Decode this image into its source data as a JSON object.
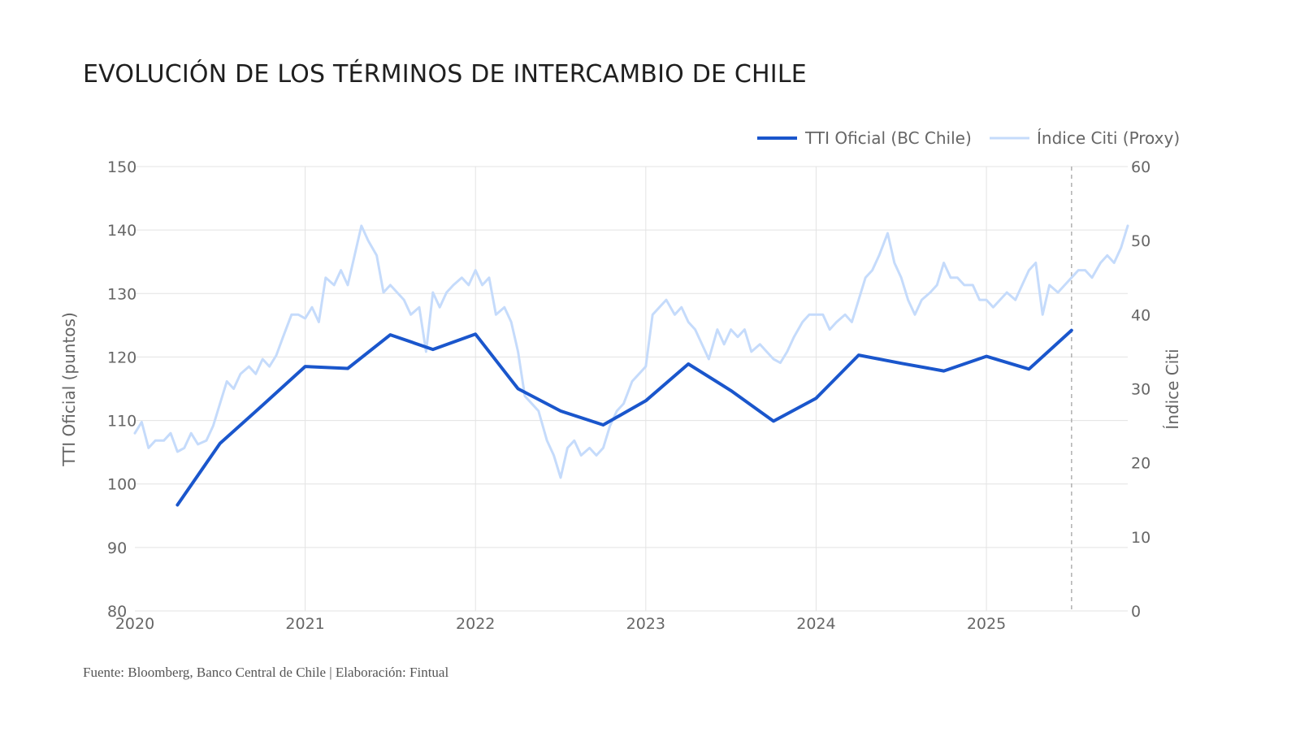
{
  "title": "EVOLUCIÓN DE LOS TÉRMINOS DE INTERCAMBIO DE CHILE",
  "footer": "Fuente: Bloomberg, Banco Central de Chile | Elaboración: Fintual",
  "chart_data": {
    "type": "line",
    "x_ticks": [
      "2020",
      "2021",
      "2022",
      "2023",
      "2024",
      "2025"
    ],
    "x_range": [
      2020.0,
      2025.83
    ],
    "y_left": {
      "label": "TTI Oficial (puntos)",
      "range": [
        80,
        150
      ],
      "ticks": [
        "80",
        "90",
        "100",
        "110",
        "120",
        "130",
        "140",
        "150"
      ]
    },
    "y_right": {
      "label": "Índice Citi",
      "range": [
        0,
        60
      ],
      "ticks": [
        "0",
        "10",
        "20",
        "30",
        "40",
        "50",
        "60"
      ]
    },
    "vline_x": 2025.5,
    "grid": true,
    "legend_position": "top-right",
    "colors": {
      "official": "#1a56cc",
      "citi": "#c5dbfb",
      "grid": "#e3e3e3",
      "vline": "#b0b0b0",
      "text": "#666666"
    },
    "series": [
      {
        "name": "TTI Oficial (BC Chile)",
        "axis": "left",
        "x": [
          2020.25,
          2020.5,
          2020.75,
          2021.0,
          2021.25,
          2021.5,
          2021.75,
          2022.0,
          2022.25,
          2022.5,
          2022.75,
          2023.0,
          2023.25,
          2023.5,
          2023.75,
          2024.0,
          2024.25,
          2024.5,
          2024.75,
          2025.0,
          2025.25,
          2025.5
        ],
        "values": [
          96.7,
          106.4,
          112.4,
          118.5,
          118.2,
          123.5,
          121.2,
          123.6,
          115.0,
          111.5,
          109.3,
          113.1,
          118.9,
          114.7,
          109.9,
          113.5,
          120.3,
          119.0,
          117.8,
          120.1,
          118.1,
          124.2
        ]
      },
      {
        "name": "Índice Citi (Proxy)",
        "axis": "right",
        "x": [
          2020.0,
          2020.04,
          2020.08,
          2020.12,
          2020.17,
          2020.21,
          2020.25,
          2020.29,
          2020.33,
          2020.37,
          2020.42,
          2020.46,
          2020.5,
          2020.54,
          2020.58,
          2020.62,
          2020.67,
          2020.71,
          2020.75,
          2020.79,
          2020.83,
          2020.87,
          2020.92,
          2020.96,
          2021.0,
          2021.04,
          2021.08,
          2021.12,
          2021.17,
          2021.21,
          2021.25,
          2021.29,
          2021.33,
          2021.37,
          2021.42,
          2021.46,
          2021.5,
          2021.54,
          2021.58,
          2021.62,
          2021.67,
          2021.71,
          2021.75,
          2021.79,
          2021.83,
          2021.87,
          2021.92,
          2021.96,
          2022.0,
          2022.04,
          2022.08,
          2022.12,
          2022.17,
          2022.21,
          2022.25,
          2022.29,
          2022.33,
          2022.37,
          2022.42,
          2022.46,
          2022.5,
          2022.54,
          2022.58,
          2022.62,
          2022.67,
          2022.71,
          2022.75,
          2022.79,
          2022.83,
          2022.87,
          2022.92,
          2022.96,
          2023.0,
          2023.04,
          2023.08,
          2023.12,
          2023.17,
          2023.21,
          2023.25,
          2023.29,
          2023.33,
          2023.37,
          2023.42,
          2023.46,
          2023.5,
          2023.54,
          2023.58,
          2023.62,
          2023.67,
          2023.71,
          2023.75,
          2023.79,
          2023.83,
          2023.87,
          2023.92,
          2023.96,
          2024.0,
          2024.04,
          2024.08,
          2024.12,
          2024.17,
          2024.21,
          2024.25,
          2024.29,
          2024.33,
          2024.37,
          2024.42,
          2024.46,
          2024.5,
          2024.54,
          2024.58,
          2024.62,
          2024.67,
          2024.71,
          2024.75,
          2024.79,
          2024.83,
          2024.87,
          2024.92,
          2024.96,
          2025.0,
          2025.04,
          2025.08,
          2025.12,
          2025.17,
          2025.21,
          2025.25,
          2025.29,
          2025.33,
          2025.37,
          2025.42,
          2025.46,
          2025.5,
          2025.54,
          2025.58,
          2025.62,
          2025.67,
          2025.71,
          2025.75,
          2025.79,
          2025.83
        ],
        "values": [
          24,
          25.5,
          22,
          23,
          23,
          24,
          21.5,
          22,
          24,
          22.5,
          23,
          25,
          28,
          31,
          30,
          32,
          33,
          32,
          34,
          33,
          34.5,
          37,
          40,
          40,
          39.5,
          41,
          39,
          45,
          44,
          46,
          44,
          48,
          52,
          50,
          48,
          43,
          44,
          43,
          42,
          40,
          41,
          35,
          43,
          41,
          43,
          44,
          45,
          44,
          46,
          44,
          45,
          40,
          41,
          39,
          35,
          29,
          28,
          27,
          23,
          21,
          18,
          22,
          23,
          21,
          22,
          21,
          22,
          25,
          27,
          28,
          31,
          32,
          33,
          40,
          41,
          42,
          40,
          41,
          39,
          38,
          36,
          34,
          38,
          36,
          38,
          37,
          38,
          35,
          36,
          35,
          34,
          33.5,
          35,
          37,
          39,
          40,
          40,
          40,
          38,
          39,
          40,
          39,
          42,
          45,
          46,
          48,
          51,
          47,
          45,
          42,
          40,
          42,
          43,
          44,
          47,
          45,
          45,
          44,
          44,
          42,
          42,
          41,
          42,
          43,
          42,
          44,
          46,
          47,
          40,
          44,
          43,
          44,
          45,
          46,
          46,
          45,
          47,
          48,
          47,
          49,
          52
        ]
      }
    ]
  }
}
